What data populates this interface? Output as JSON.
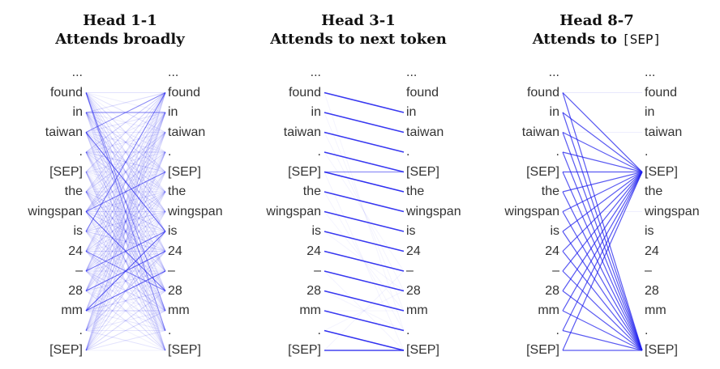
{
  "tokens": [
    "...",
    "found",
    "in",
    "taiwan",
    ".",
    "[SEP]",
    "the",
    "wingspan",
    "is",
    "24",
    "–",
    "28",
    "mm",
    ".",
    "[SEP]"
  ],
  "link_color": "#2222ee",
  "heads": [
    {
      "title_line1": "Head 1-1",
      "title_line2": "Attends broadly",
      "title_code": "",
      "pattern": "broad"
    },
    {
      "title_line1": "Head 3-1",
      "title_line2": "Attends to next token",
      "title_code": "",
      "pattern": "next"
    },
    {
      "title_line1": "Head 8-7",
      "title_line2": "Attends to ",
      "title_code": "[SEP]",
      "pattern": "sep"
    }
  ]
}
